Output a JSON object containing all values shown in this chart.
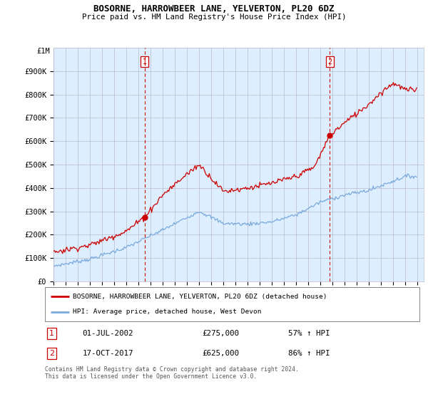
{
  "title": "BOSORNE, HARROWBEER LANE, YELVERTON, PL20 6DZ",
  "subtitle": "Price paid vs. HM Land Registry's House Price Index (HPI)",
  "hpi_label": "HPI: Average price, detached house, West Devon",
  "property_label": "BOSORNE, HARROWBEER LANE, YELVERTON, PL20 6DZ (detached house)",
  "sale1_date": "01-JUL-2002",
  "sale1_price": 275000,
  "sale1_pct": "57% ↑ HPI",
  "sale2_date": "17-OCT-2017",
  "sale2_price": 625000,
  "sale2_pct": "86% ↑ HPI",
  "footnote": "Contains HM Land Registry data © Crown copyright and database right 2024.\nThis data is licensed under the Open Government Licence v3.0.",
  "ylim": [
    0,
    1000000
  ],
  "yticks": [
    0,
    100000,
    200000,
    300000,
    400000,
    500000,
    600000,
    700000,
    800000,
    900000
  ],
  "yticklabels": [
    "£0",
    "£100K",
    "£200K",
    "£300K",
    "£400K",
    "£500K",
    "£600K",
    "£700K",
    "£800K",
    "£900K"
  ],
  "y1m_label": "£1M",
  "sale1_color": "#cc0000",
  "sale2_color": "#cc0000",
  "vline_color": "#cc0000",
  "hpi_color": "#7aaadd",
  "property_color": "#cc0000",
  "background_color": "#ffffff",
  "chart_bg_color": "#ddeeff",
  "grid_color": "#bbbbcc"
}
